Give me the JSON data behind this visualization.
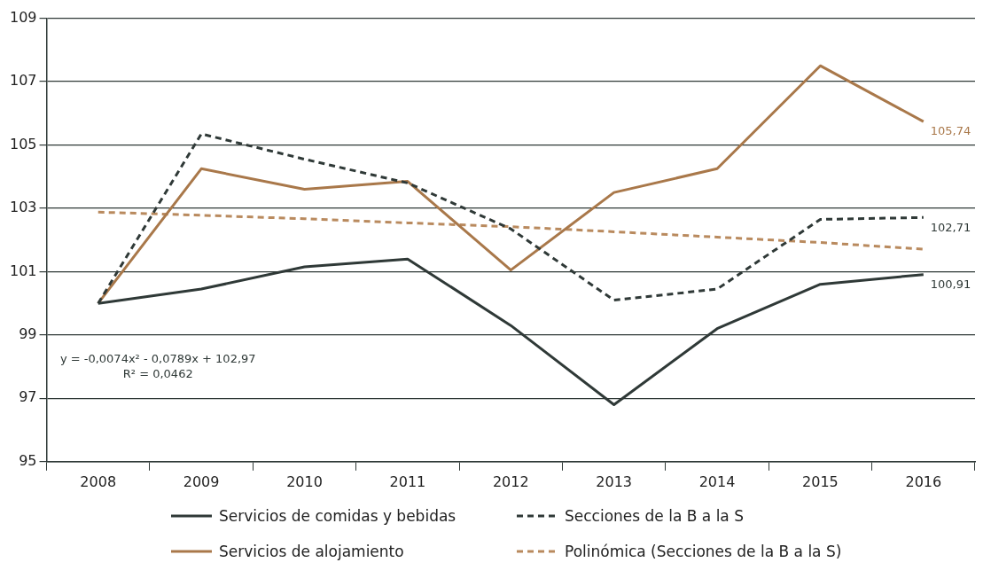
{
  "chart_data": {
    "type": "line",
    "categories": [
      "2008",
      "2009",
      "2010",
      "2011",
      "2012",
      "2013",
      "2014",
      "2015",
      "2016"
    ],
    "series": [
      {
        "name": "Servicios de comidas y bebidas",
        "color": "#2f3937",
        "line_style": "solid",
        "values": [
          100,
          100.45,
          101.15,
          101.4,
          99.3,
          96.8,
          99.2,
          100.6,
          100.91
        ],
        "value_labels": [
          null,
          null,
          null,
          null,
          null,
          null,
          null,
          null,
          "100,91"
        ]
      },
      {
        "name": "Secciones de la B a la S",
        "color": "#2f3937",
        "line_style": "dashed",
        "values": [
          100,
          105.35,
          104.55,
          103.8,
          102.35,
          100.1,
          100.45,
          102.65,
          102.71
        ],
        "value_labels": [
          null,
          null,
          null,
          null,
          null,
          null,
          null,
          null,
          "102,71"
        ]
      },
      {
        "name": "Servicios de alojamiento",
        "color": "#a9784a",
        "line_style": "solid",
        "values": [
          100,
          104.25,
          103.6,
          103.85,
          101.05,
          103.5,
          104.25,
          107.5,
          105.74
        ],
        "value_labels": [
          null,
          null,
          null,
          null,
          null,
          null,
          null,
          null,
          "105,74"
        ]
      },
      {
        "name": "Polinómica (Secciones de la B a la S)",
        "color": "#b98a5e",
        "line_style": "dashed",
        "values": [
          102.88,
          102.78,
          102.67,
          102.54,
          102.42,
          102.26,
          102.09,
          101.92,
          101.71
        ]
      }
    ],
    "ylim": [
      95,
      109
    ],
    "yticks": [
      95,
      97,
      99,
      101,
      103,
      105,
      107,
      109
    ],
    "grid": "y",
    "legend": "bottom",
    "marker": "none",
    "annotations": [
      "y = -0,0074x² - 0,0789x + 102,97",
      "R² = 0,0462"
    ]
  }
}
